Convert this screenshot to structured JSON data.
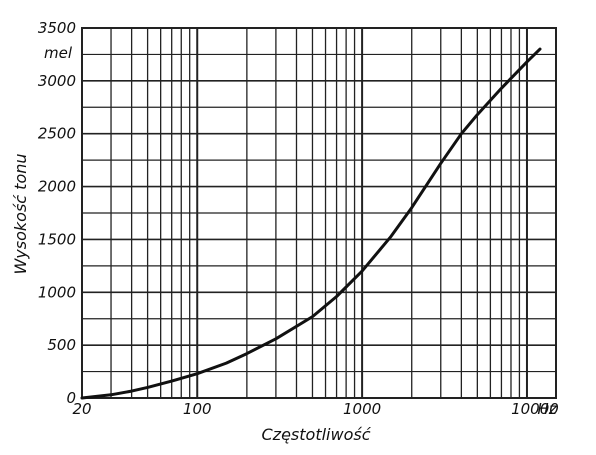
{
  "chart_data": {
    "type": "line",
    "xscale": "log",
    "xlabel": "Częstotliwość",
    "xunit": "Hz",
    "ylabel": "Wysokość tonu",
    "yunit": "mel",
    "xlim": [
      20,
      15000
    ],
    "ylim": [
      0,
      3500
    ],
    "xticks": [
      {
        "value": 20,
        "label": "20"
      },
      {
        "value": 100,
        "label": "100"
      },
      {
        "value": 1000,
        "label": "1000"
      },
      {
        "value": 10000,
        "label": "10000"
      }
    ],
    "yticks": [
      {
        "value": 0,
        "label": "0"
      },
      {
        "value": 500,
        "label": "500"
      },
      {
        "value": 1000,
        "label": "1000"
      },
      {
        "value": 1500,
        "label": "1500"
      },
      {
        "value": 2000,
        "label": "2000"
      },
      {
        "value": 2500,
        "label": "2500"
      },
      {
        "value": 3000,
        "label": "3000"
      },
      {
        "value": 3500,
        "label": "3500"
      }
    ],
    "grid": true,
    "series": [
      {
        "x": [
          20,
          30,
          40,
          50,
          70,
          100,
          150,
          200,
          300,
          500,
          700,
          1000,
          1500,
          2000,
          3000,
          4000,
          5000,
          7000,
          10000,
          12000
        ],
        "y": [
          0,
          30,
          65,
          100,
          160,
          230,
          330,
          420,
          560,
          770,
          960,
          1200,
          1530,
          1800,
          2220,
          2500,
          2680,
          2930,
          3180,
          3300
        ]
      }
    ],
    "colors": {
      "line": "#111111",
      "grid": "#222222",
      "background": "#ffffff"
    }
  }
}
